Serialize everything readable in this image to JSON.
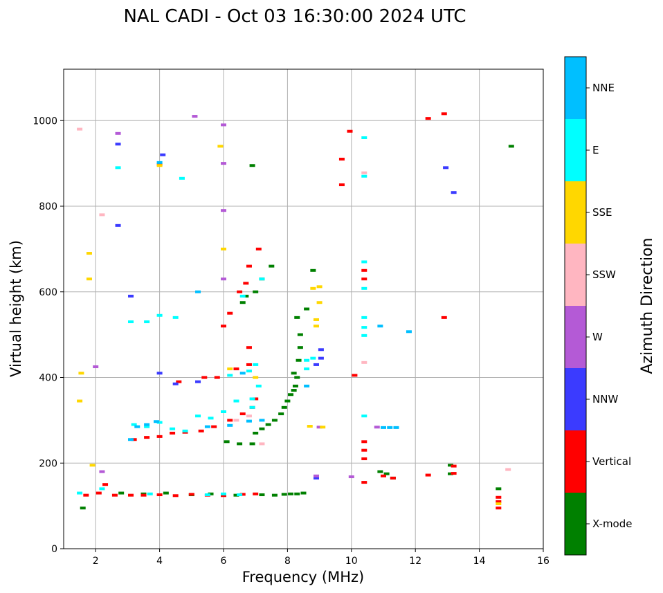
{
  "chart_data": {
    "type": "scatter",
    "title": "NAL CADI - Oct 03 16:30:00 2024 UTC",
    "xlabel": "Frequency (MHz)",
    "ylabel": "Virtual height (km)",
    "xlim": [
      1,
      16
    ],
    "ylim": [
      0,
      1120
    ],
    "xticks": [
      2,
      4,
      6,
      8,
      10,
      12,
      14,
      16
    ],
    "yticks": [
      0,
      200,
      400,
      600,
      800,
      1000
    ],
    "grid": true,
    "colorbar": {
      "title": "Azimuth Direction",
      "categories": [
        {
          "name": "X-mode",
          "color": "#008000"
        },
        {
          "name": "Vertical",
          "color": "#ff0000"
        },
        {
          "name": "NNW",
          "color": "#3b3bff"
        },
        {
          "name": "W",
          "color": "#b45ad6"
        },
        {
          "name": "SSW",
          "color": "#ffb6c1"
        },
        {
          "name": "SSE",
          "color": "#ffd700"
        },
        {
          "name": "E",
          "color": "#00ffff"
        },
        {
          "name": "NNE",
          "color": "#00bfff"
        }
      ]
    },
    "series": [
      {
        "name": "X-mode",
        "points": [
          [
            1.6,
            95
          ],
          [
            2.8,
            130
          ],
          [
            3.5,
            128
          ],
          [
            4.2,
            130
          ],
          [
            5.0,
            126
          ],
          [
            5.6,
            128
          ],
          [
            6.4,
            125
          ],
          [
            7.2,
            126
          ],
          [
            7.6,
            125
          ],
          [
            7.9,
            127
          ],
          [
            8.1,
            128
          ],
          [
            8.3,
            128
          ],
          [
            8.5,
            130
          ],
          [
            6.1,
            250
          ],
          [
            6.5,
            245
          ],
          [
            6.9,
            245
          ],
          [
            7.0,
            270
          ],
          [
            7.2,
            280
          ],
          [
            7.4,
            290
          ],
          [
            7.6,
            300
          ],
          [
            7.8,
            315
          ],
          [
            7.9,
            330
          ],
          [
            8.0,
            345
          ],
          [
            8.1,
            360
          ],
          [
            8.2,
            370
          ],
          [
            8.25,
            380
          ],
          [
            8.3,
            400
          ],
          [
            8.2,
            410
          ],
          [
            8.35,
            440
          ],
          [
            8.4,
            470
          ],
          [
            8.4,
            500
          ],
          [
            8.3,
            540
          ],
          [
            8.6,
            560
          ],
          [
            6.6,
            575
          ],
          [
            6.7,
            590
          ],
          [
            7.0,
            600
          ],
          [
            7.2,
            630
          ],
          [
            7.5,
            660
          ],
          [
            8.8,
            650
          ],
          [
            6.9,
            895
          ],
          [
            15.0,
            940
          ],
          [
            10.9,
            180
          ],
          [
            11.1,
            175
          ],
          [
            11.3,
            165
          ],
          [
            13.1,
            195
          ],
          [
            13.1,
            175
          ],
          [
            14.6,
            140
          ]
        ]
      },
      {
        "name": "Vertical",
        "points": [
          [
            1.7,
            125
          ],
          [
            2.1,
            130
          ],
          [
            2.3,
            150
          ],
          [
            2.6,
            125
          ],
          [
            3.1,
            125
          ],
          [
            3.5,
            125
          ],
          [
            4.0,
            126
          ],
          [
            4.5,
            124
          ],
          [
            5.0,
            127
          ],
          [
            5.5,
            125
          ],
          [
            6.0,
            124
          ],
          [
            6.6,
            127
          ],
          [
            7.0,
            128
          ],
          [
            3.2,
            255
          ],
          [
            3.6,
            260
          ],
          [
            4.0,
            262
          ],
          [
            4.4,
            270
          ],
          [
            4.8,
            272
          ],
          [
            5.3,
            275
          ],
          [
            5.7,
            285
          ],
          [
            6.2,
            300
          ],
          [
            6.6,
            315
          ],
          [
            6.9,
            330
          ],
          [
            7.0,
            350
          ],
          [
            4.6,
            390
          ],
          [
            5.4,
            400
          ],
          [
            5.8,
            400
          ],
          [
            6.4,
            420
          ],
          [
            6.8,
            430
          ],
          [
            6.8,
            470
          ],
          [
            6.0,
            520
          ],
          [
            6.2,
            550
          ],
          [
            6.5,
            600
          ],
          [
            6.7,
            620
          ],
          [
            6.8,
            660
          ],
          [
            7.1,
            700
          ],
          [
            4.0,
            897
          ],
          [
            9.7,
            910
          ],
          [
            9.7,
            850
          ],
          [
            9.95,
            975
          ],
          [
            10.1,
            405
          ],
          [
            10.4,
            650
          ],
          [
            10.4,
            630
          ],
          [
            10.4,
            250
          ],
          [
            10.4,
            230
          ],
          [
            10.4,
            210
          ],
          [
            10.4,
            155
          ],
          [
            11.0,
            170
          ],
          [
            11.3,
            165
          ],
          [
            12.4,
            172
          ],
          [
            12.4,
            1005
          ],
          [
            13.2,
            193
          ],
          [
            13.2,
            176
          ],
          [
            14.6,
            120
          ],
          [
            14.6,
            110
          ],
          [
            14.6,
            95
          ],
          [
            12.9,
            1016
          ],
          [
            12.9,
            540
          ]
        ]
      },
      {
        "name": "NNW",
        "points": [
          [
            4.5,
            385
          ],
          [
            5.2,
            390
          ],
          [
            8.9,
            430
          ],
          [
            9.05,
            445
          ],
          [
            9.05,
            465
          ],
          [
            8.9,
            165
          ],
          [
            13.2,
            832
          ],
          [
            12.95,
            890
          ],
          [
            2.7,
            945
          ],
          [
            4.1,
            920
          ],
          [
            3.1,
            590
          ],
          [
            4.0,
            410
          ],
          [
            2.7,
            755
          ]
        ]
      },
      {
        "name": "W",
        "points": [
          [
            2.0,
            425
          ],
          [
            6.0,
            990
          ],
          [
            6.0,
            900
          ],
          [
            6.0,
            790
          ],
          [
            6.0,
            630
          ],
          [
            5.1,
            1010
          ],
          [
            8.9,
            170
          ],
          [
            9.0,
            284
          ],
          [
            10.0,
            168
          ],
          [
            10.8,
            284
          ],
          [
            2.7,
            970
          ],
          [
            2.2,
            180
          ]
        ]
      },
      {
        "name": "SSW",
        "points": [
          [
            1.5,
            980
          ],
          [
            2.2,
            780
          ],
          [
            6.4,
            300
          ],
          [
            6.8,
            310
          ],
          [
            10.4,
            878
          ],
          [
            10.4,
            435
          ],
          [
            14.9,
            185
          ],
          [
            7.2,
            245
          ]
        ]
      },
      {
        "name": "SSE",
        "points": [
          [
            1.9,
            195
          ],
          [
            1.8,
            690
          ],
          [
            1.8,
            630
          ],
          [
            1.55,
            410
          ],
          [
            1.5,
            345
          ],
          [
            6.0,
            700
          ],
          [
            6.2,
            420
          ],
          [
            7.0,
            400
          ],
          [
            8.8,
            608
          ],
          [
            9.0,
            612
          ],
          [
            9.0,
            575
          ],
          [
            8.9,
            520
          ],
          [
            8.9,
            535
          ],
          [
            8.7,
            286
          ],
          [
            9.1,
            284
          ],
          [
            5.9,
            940
          ],
          [
            4.0,
            895
          ],
          [
            14.6,
            105
          ]
        ]
      },
      {
        "name": "E",
        "points": [
          [
            2.7,
            890
          ],
          [
            3.1,
            530
          ],
          [
            3.6,
            530
          ],
          [
            4.0,
            545
          ],
          [
            4.5,
            540
          ],
          [
            4.7,
            865
          ],
          [
            3.2,
            290
          ],
          [
            3.6,
            285
          ],
          [
            4.0,
            295
          ],
          [
            4.4,
            280
          ],
          [
            4.8,
            275
          ],
          [
            5.2,
            310
          ],
          [
            5.6,
            305
          ],
          [
            6.0,
            320
          ],
          [
            6.4,
            345
          ],
          [
            6.9,
            350
          ],
          [
            7.1,
            380
          ],
          [
            6.2,
            405
          ],
          [
            6.8,
            415
          ],
          [
            7.0,
            430
          ],
          [
            8.6,
            420
          ],
          [
            8.6,
            440
          ],
          [
            6.9,
            330
          ],
          [
            6.6,
            590
          ],
          [
            7.2,
            630
          ],
          [
            10.4,
            960
          ],
          [
            10.4,
            870
          ],
          [
            10.4,
            670
          ],
          [
            10.4,
            608
          ],
          [
            10.4,
            540
          ],
          [
            10.4,
            517
          ],
          [
            10.4,
            498
          ],
          [
            10.4,
            310
          ],
          [
            8.8,
            445
          ],
          [
            1.5,
            130
          ],
          [
            2.2,
            140
          ],
          [
            3.7,
            128
          ],
          [
            5.5,
            126
          ],
          [
            6.0,
            128
          ],
          [
            6.5,
            126
          ]
        ]
      },
      {
        "name": "NNE",
        "points": [
          [
            11.2,
            283
          ],
          [
            11.0,
            283
          ],
          [
            11.4,
            283
          ],
          [
            3.3,
            285
          ],
          [
            3.6,
            290
          ],
          [
            3.9,
            297
          ],
          [
            5.5,
            285
          ],
          [
            6.2,
            288
          ],
          [
            6.8,
            298
          ],
          [
            7.2,
            300
          ],
          [
            3.1,
            255
          ],
          [
            5.2,
            600
          ],
          [
            6.6,
            410
          ],
          [
            8.6,
            380
          ],
          [
            11.8,
            507
          ],
          [
            4.0,
            902
          ],
          [
            10.9,
            520
          ]
        ]
      }
    ]
  }
}
